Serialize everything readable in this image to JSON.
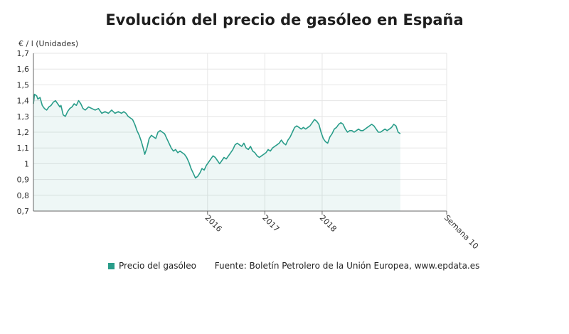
{
  "title": "Evolución del precio de gasóleo en España",
  "chart_data": {
    "type": "area",
    "ylabel": "€ / l (Unidades)",
    "ylim": [
      0.7,
      1.7
    ],
    "yticks": [
      "0,7",
      "0,8",
      "0,9",
      "1",
      "1,1",
      "1,2",
      "1,3",
      "1,4",
      "1,5",
      "1,6",
      "1,7"
    ],
    "xticks": [
      {
        "label": "2016",
        "x": 158
      },
      {
        "label": "2017",
        "x": 210
      },
      {
        "label": "2018",
        "x": 262
      },
      {
        "label": "Semana 10",
        "x": 375
      }
    ],
    "xlim": [
      0,
      375
    ],
    "series": [
      {
        "name": "Precio del gasóleo",
        "color": "#2a9d8a",
        "points": [
          [
            0,
            1.38
          ],
          [
            1,
            1.44
          ],
          [
            3,
            1.43
          ],
          [
            4,
            1.41
          ],
          [
            6,
            1.42
          ],
          [
            8,
            1.37
          ],
          [
            10,
            1.35
          ],
          [
            12,
            1.34
          ],
          [
            14,
            1.36
          ],
          [
            16,
            1.37
          ],
          [
            18,
            1.39
          ],
          [
            20,
            1.4
          ],
          [
            22,
            1.38
          ],
          [
            24,
            1.36
          ],
          [
            25,
            1.37
          ],
          [
            27,
            1.31
          ],
          [
            29,
            1.3
          ],
          [
            31,
            1.33
          ],
          [
            33,
            1.35
          ],
          [
            35,
            1.36
          ],
          [
            37,
            1.38
          ],
          [
            39,
            1.37
          ],
          [
            41,
            1.4
          ],
          [
            43,
            1.38
          ],
          [
            45,
            1.35
          ],
          [
            47,
            1.34
          ],
          [
            50,
            1.36
          ],
          [
            53,
            1.35
          ],
          [
            56,
            1.34
          ],
          [
            59,
            1.35
          ],
          [
            62,
            1.32
          ],
          [
            65,
            1.33
          ],
          [
            68,
            1.32
          ],
          [
            71,
            1.34
          ],
          [
            74,
            1.32
          ],
          [
            77,
            1.33
          ],
          [
            80,
            1.32
          ],
          [
            82,
            1.33
          ],
          [
            84,
            1.32
          ],
          [
            86,
            1.3
          ],
          [
            88,
            1.29
          ],
          [
            90,
            1.28
          ],
          [
            92,
            1.25
          ],
          [
            94,
            1.21
          ],
          [
            96,
            1.18
          ],
          [
            98,
            1.14
          ],
          [
            100,
            1.09
          ],
          [
            101,
            1.06
          ],
          [
            103,
            1.1
          ],
          [
            105,
            1.16
          ],
          [
            107,
            1.18
          ],
          [
            109,
            1.17
          ],
          [
            111,
            1.16
          ],
          [
            113,
            1.2
          ],
          [
            115,
            1.21
          ],
          [
            117,
            1.2
          ],
          [
            119,
            1.19
          ],
          [
            121,
            1.16
          ],
          [
            123,
            1.13
          ],
          [
            125,
            1.1
          ],
          [
            127,
            1.08
          ],
          [
            129,
            1.09
          ],
          [
            131,
            1.07
          ],
          [
            133,
            1.08
          ],
          [
            135,
            1.07
          ],
          [
            137,
            1.06
          ],
          [
            139,
            1.04
          ],
          [
            141,
            1.01
          ],
          [
            143,
            0.97
          ],
          [
            145,
            0.94
          ],
          [
            147,
            0.91
          ],
          [
            149,
            0.92
          ],
          [
            151,
            0.94
          ],
          [
            153,
            0.97
          ],
          [
            155,
            0.96
          ],
          [
            157,
            0.99
          ],
          [
            159,
            1.01
          ],
          [
            161,
            1.03
          ],
          [
            163,
            1.05
          ],
          [
            165,
            1.04
          ],
          [
            167,
            1.02
          ],
          [
            169,
            1.0
          ],
          [
            171,
            1.02
          ],
          [
            173,
            1.04
          ],
          [
            175,
            1.03
          ],
          [
            177,
            1.05
          ],
          [
            179,
            1.07
          ],
          [
            181,
            1.09
          ],
          [
            183,
            1.12
          ],
          [
            185,
            1.13
          ],
          [
            187,
            1.12
          ],
          [
            189,
            1.11
          ],
          [
            191,
            1.13
          ],
          [
            193,
            1.1
          ],
          [
            195,
            1.09
          ],
          [
            197,
            1.11
          ],
          [
            199,
            1.08
          ],
          [
            201,
            1.07
          ],
          [
            203,
            1.05
          ],
          [
            205,
            1.04
          ],
          [
            207,
            1.05
          ],
          [
            209,
            1.06
          ],
          [
            211,
            1.07
          ],
          [
            213,
            1.09
          ],
          [
            215,
            1.08
          ],
          [
            217,
            1.1
          ],
          [
            219,
            1.11
          ],
          [
            221,
            1.12
          ],
          [
            223,
            1.13
          ],
          [
            225,
            1.15
          ],
          [
            227,
            1.13
          ],
          [
            229,
            1.12
          ],
          [
            231,
            1.15
          ],
          [
            233,
            1.17
          ],
          [
            235,
            1.2
          ],
          [
            237,
            1.23
          ],
          [
            239,
            1.24
          ],
          [
            241,
            1.23
          ],
          [
            243,
            1.22
          ],
          [
            245,
            1.23
          ],
          [
            247,
            1.22
          ],
          [
            249,
            1.23
          ],
          [
            251,
            1.24
          ],
          [
            253,
            1.26
          ],
          [
            255,
            1.28
          ],
          [
            257,
            1.27
          ],
          [
            259,
            1.25
          ],
          [
            261,
            1.2
          ],
          [
            263,
            1.16
          ],
          [
            265,
            1.14
          ],
          [
            267,
            1.13
          ],
          [
            269,
            1.17
          ],
          [
            271,
            1.19
          ],
          [
            273,
            1.22
          ],
          [
            275,
            1.23
          ],
          [
            277,
            1.25
          ],
          [
            279,
            1.26
          ],
          [
            281,
            1.25
          ],
          [
            283,
            1.22
          ],
          [
            285,
            1.2
          ],
          [
            287,
            1.21
          ],
          [
            289,
            1.21
          ],
          [
            291,
            1.2
          ],
          [
            293,
            1.21
          ],
          [
            295,
            1.22
          ],
          [
            297,
            1.21
          ],
          [
            299,
            1.21
          ],
          [
            301,
            1.22
          ],
          [
            303,
            1.23
          ],
          [
            305,
            1.24
          ],
          [
            307,
            1.25
          ],
          [
            309,
            1.24
          ],
          [
            311,
            1.22
          ],
          [
            313,
            1.2
          ],
          [
            315,
            1.2
          ],
          [
            317,
            1.21
          ],
          [
            319,
            1.22
          ],
          [
            321,
            1.21
          ],
          [
            323,
            1.22
          ],
          [
            325,
            1.23
          ],
          [
            327,
            1.25
          ],
          [
            329,
            1.24
          ],
          [
            331,
            1.2
          ],
          [
            333,
            1.19
          ]
        ]
      }
    ],
    "grid": true
  },
  "legend": {
    "label": "Precio del gasóleo",
    "source": "Fuente: Boletín Petrolero de la Unión Europea, www.epdata.es"
  }
}
